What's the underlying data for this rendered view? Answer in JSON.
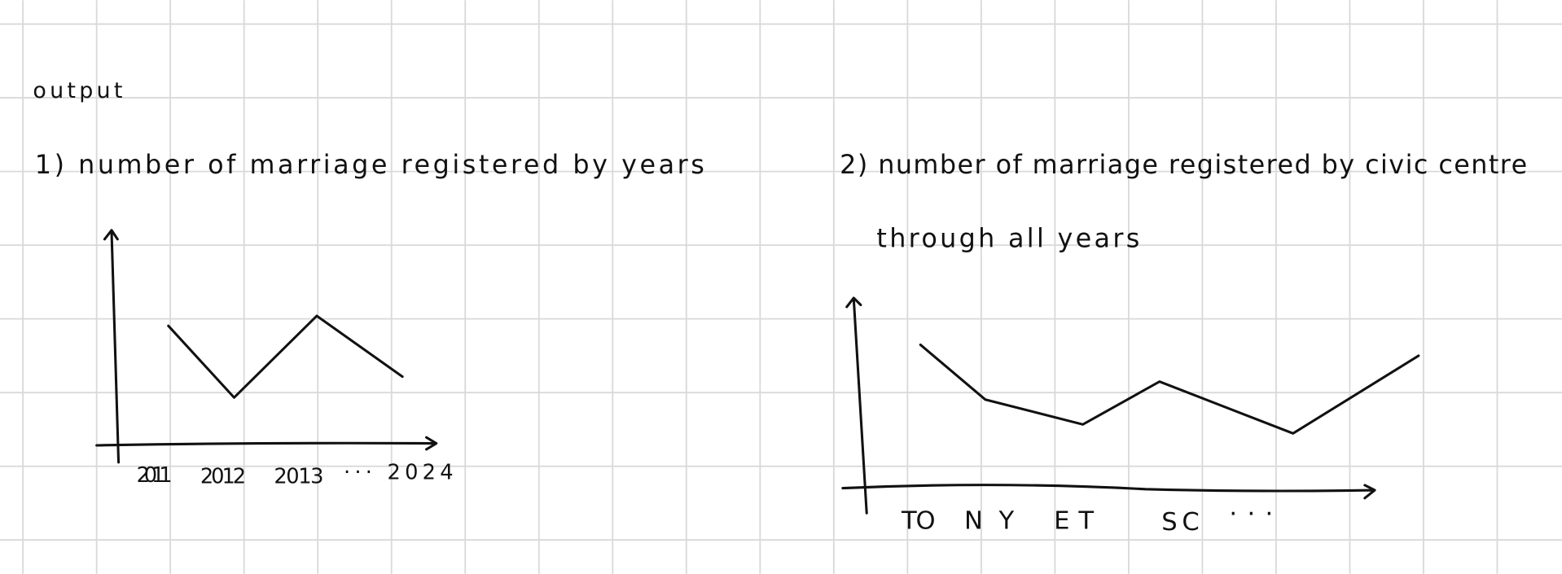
{
  "heading": "output",
  "sketches": [
    {
      "title_lines": [
        "1) number of marriage registered by years"
      ],
      "x_labels": [
        "2011",
        "2012",
        "2013",
        "··· 2024"
      ]
    },
    {
      "title_lines": [
        "2) number of marriage registered by civic centre",
        "through all years"
      ],
      "x_labels": [
        "TO",
        "NY",
        "ET",
        "SC",
        "···"
      ]
    }
  ]
}
